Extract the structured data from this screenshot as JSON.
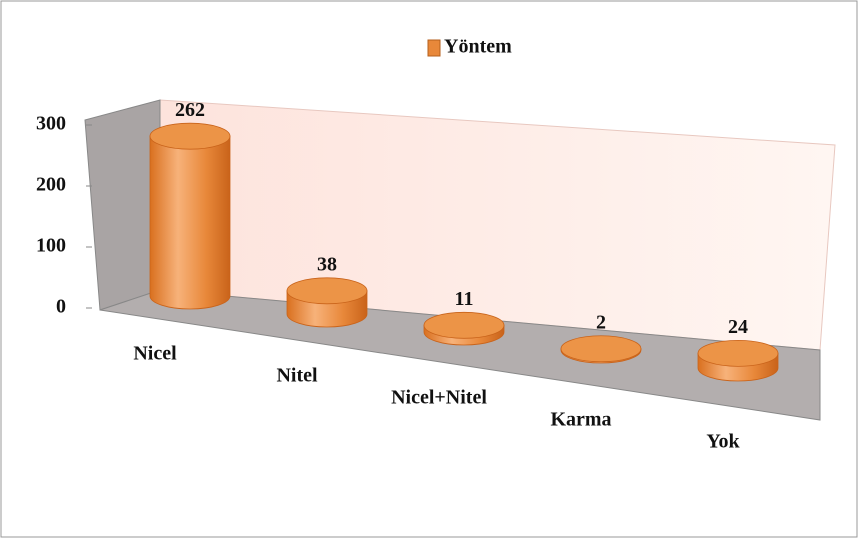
{
  "chart_data": {
    "type": "bar3d",
    "legend": "Yöntem",
    "categories": [
      "Nicel",
      "Nitel",
      "Nicel+Nitel",
      "Karma",
      "Yok"
    ],
    "values": [
      262,
      38,
      11,
      2,
      24
    ],
    "color": "#e8883a",
    "ylim": [
      0,
      300
    ],
    "yticks": [
      0,
      100,
      200,
      300
    ]
  }
}
